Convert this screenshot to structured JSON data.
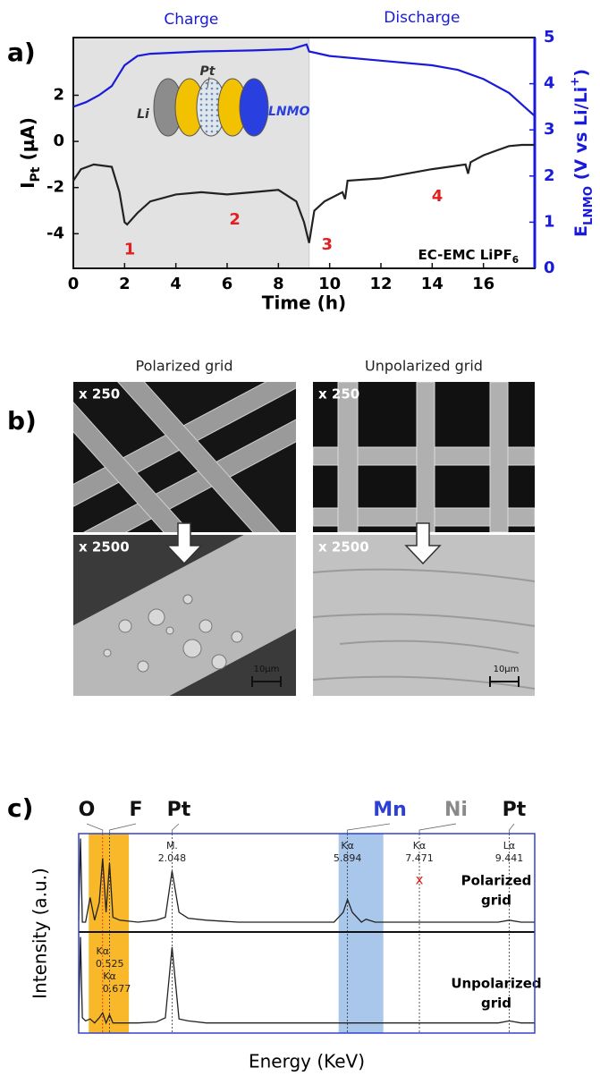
{
  "panel_labels": [
    "a)",
    "b)",
    "c)"
  ],
  "chart_data": [
    {
      "type": "line",
      "top_labels": [
        "Charge",
        "Discharge"
      ],
      "charge_region": [
        0,
        9.2
      ],
      "x_label": "Time (h)",
      "y_label_parts": [
        "I",
        "Pt",
        " (µA)"
      ],
      "y2_label_parts": [
        "E",
        "LNMO",
        " (V vs Li/Li",
        "+",
        ")"
      ],
      "xlim": [
        0,
        18
      ],
      "xticks": [
        0,
        2,
        4,
        6,
        8,
        10,
        12,
        14,
        16
      ],
      "ylim": [
        -5.5,
        4.5
      ],
      "yticks": [
        -4,
        -2,
        0,
        2
      ],
      "y2lim": [
        0,
        5
      ],
      "y2ticks": [
        0,
        1,
        2,
        3,
        4,
        5
      ],
      "y2_color": "#1a1adb",
      "series": [
        {
          "color": "#222222",
          "x": [
            0,
            0.3,
            0.8,
            1.5,
            1.8,
            2.0,
            2.1,
            2.5,
            3,
            4,
            5,
            6,
            7,
            8,
            8.7,
            9.0,
            9.2,
            9.4,
            9.8,
            10.5,
            10.6,
            10.7,
            12,
            13,
            14,
            15.3,
            15.4,
            15.5,
            16,
            16.5,
            17,
            17.5,
            18
          ],
          "values": [
            -1.7,
            -1.2,
            -1.0,
            -1.1,
            -2.2,
            -3.5,
            -3.6,
            -3.1,
            -2.6,
            -2.3,
            -2.2,
            -2.3,
            -2.2,
            -2.1,
            -2.6,
            -3.5,
            -4.4,
            -3.0,
            -2.6,
            -2.2,
            -2.5,
            -1.7,
            -1.6,
            -1.4,
            -1.2,
            -1.0,
            -1.4,
            -0.9,
            -0.6,
            -0.4,
            -0.2,
            -0.15,
            -0.15
          ]
        },
        {
          "color": "#1a1adb",
          "axis": "y2",
          "x": [
            0,
            0.5,
            1,
            1.5,
            2,
            2.5,
            3,
            5,
            7,
            8.5,
            9.1,
            9.2,
            10,
            12,
            14,
            15,
            16,
            17,
            17.6,
            18
          ],
          "values": [
            3.5,
            3.6,
            3.75,
            3.95,
            4.4,
            4.6,
            4.65,
            4.7,
            4.72,
            4.75,
            4.85,
            4.7,
            4.6,
            4.5,
            4.4,
            4.3,
            4.1,
            3.8,
            3.5,
            3.3
          ]
        }
      ],
      "annotations": [
        "1",
        "2",
        "3",
        "4"
      ],
      "electrolyte_parts": [
        "EC-EMC LiPF",
        "6"
      ],
      "cell_labels": [
        "Li",
        "Pt",
        "LNMO"
      ]
    },
    {
      "type": "spectrum",
      "x_label": "Energy (KeV)",
      "y_label": "Intensity (a.u.)",
      "xlim": [
        0,
        10
      ],
      "ylim": [
        0,
        1
      ],
      "x": [
        0,
        0.04,
        0.08,
        0.15,
        0.25,
        0.35,
        0.45,
        0.525,
        0.6,
        0.677,
        0.75,
        0.9,
        1.3,
        1.7,
        1.9,
        2.048,
        2.2,
        2.4,
        2.8,
        3.5,
        5.6,
        5.8,
        5.894,
        6.0,
        6.2,
        6.3,
        6.5,
        7.5,
        9.2,
        9.441,
        9.7,
        10
      ],
      "series": [
        {
          "name_lines": [
            "Polarized",
            "grid"
          ],
          "color": "#222222",
          "values": [
            0.12,
            0.95,
            0.1,
            0.1,
            0.35,
            0.12,
            0.3,
            0.75,
            0.2,
            0.7,
            0.15,
            0.12,
            0.1,
            0.12,
            0.15,
            0.62,
            0.2,
            0.14,
            0.12,
            0.1,
            0.1,
            0.2,
            0.33,
            0.2,
            0.1,
            0.13,
            0.1,
            0.1,
            0.1,
            0.12,
            0.1,
            0.1
          ]
        },
        {
          "name_lines": [
            "Unpolarized",
            "grid"
          ],
          "color": "#222222",
          "values": [
            0.1,
            0.95,
            0.15,
            0.12,
            0.14,
            0.1,
            0.15,
            0.2,
            0.1,
            0.18,
            0.1,
            0.1,
            0.1,
            0.11,
            0.15,
            0.85,
            0.14,
            0.12,
            0.1,
            0.1,
            0.1,
            0.1,
            0.1,
            0.1,
            0.1,
            0.1,
            0.1,
            0.1,
            0.1,
            0.12,
            0.1,
            0.1
          ]
        }
      ],
      "bands": [
        {
          "range": [
            0.22,
            1.1
          ],
          "color": "#f9b72a"
        },
        {
          "range": [
            5.7,
            6.68
          ],
          "color": "#a9c7ea"
        }
      ],
      "peaks": [
        {
          "element": "O",
          "line": "Kα",
          "energy": 0.525,
          "color": "#111111"
        },
        {
          "element": "F",
          "line": "Kα",
          "energy": 0.677,
          "color": "#111111"
        },
        {
          "element": "Pt",
          "line": "M.",
          "energy": 2.048,
          "color": "#111111"
        },
        {
          "element": "Mn",
          "line": "Kα",
          "energy": 5.894,
          "color": "#2c3fd8"
        },
        {
          "element": "Ni",
          "line": "Kα",
          "energy": 7.471,
          "color": "#8a8a8a"
        },
        {
          "element": "Pt",
          "line": "Lα",
          "energy": 9.441,
          "color": "#111111"
        }
      ],
      "marker": "x"
    }
  ],
  "images": [
    {
      "title": "Polarized grid",
      "panels": [
        {
          "mag": "x 250"
        },
        {
          "mag": "x 2500",
          "scale": "10µm"
        }
      ]
    },
    {
      "title": "Unpolarized grid",
      "panels": [
        {
          "mag": "x 250"
        },
        {
          "mag": "x 2500",
          "scale": "10µm"
        }
      ]
    }
  ]
}
